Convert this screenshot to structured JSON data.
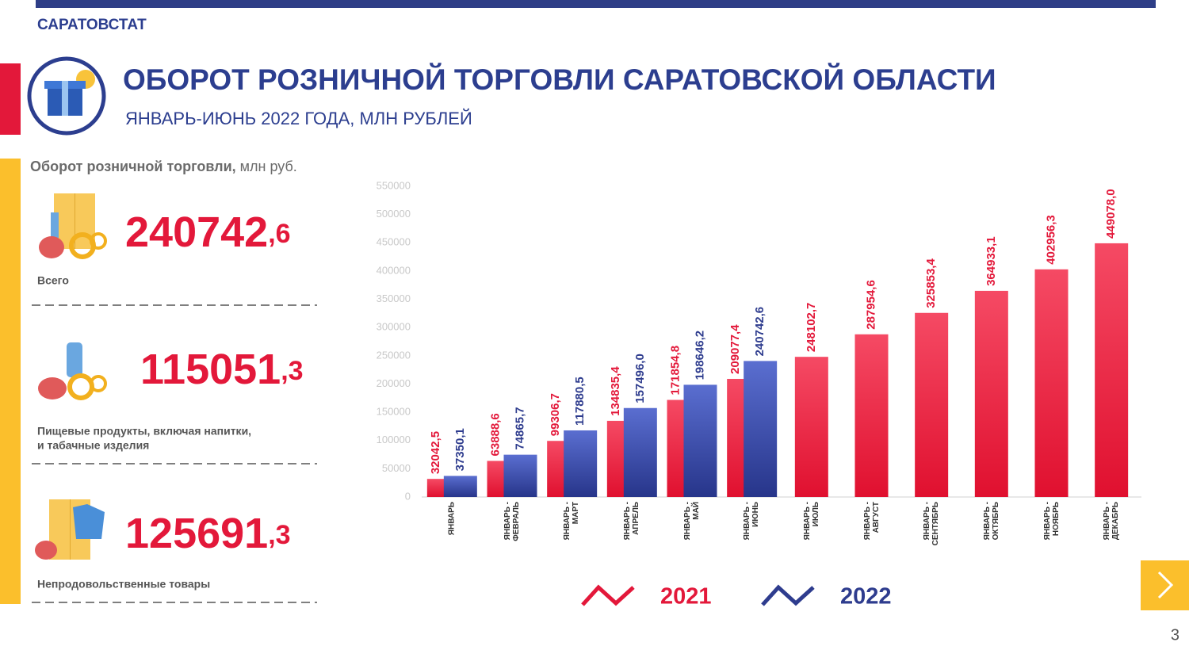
{
  "header": {
    "org": "САРАТОВСТАТ",
    "title": "ОБОРОТ РОЗНИЧНОЙ ТОРГОВЛИ САРАТОВСКОЙ ОБЛАСТИ",
    "subtitle": "ЯНВАРЬ-ИЮНЬ 2022 ГОДА, МЛН РУБЛЕЙ"
  },
  "panel": {
    "heading_bold": "Оборот розничной торговли,",
    "heading_unit": " млн руб.",
    "stats": [
      {
        "whole": "240742",
        "fraction": ",6",
        "label_lines": [
          "Всего"
        ]
      },
      {
        "whole": "115051",
        "fraction": ",3",
        "label_lines": [
          "Пищевые продукты, включая напитки,",
          "и табачные изделия"
        ]
      },
      {
        "whole": "125691",
        "fraction": ",3",
        "label_lines": [
          "Непродовольственные товары"
        ]
      }
    ]
  },
  "page_number": "3",
  "chart_data": {
    "type": "bar",
    "categories": [
      "ЯНВАРЬ",
      "ЯНВАРЬ - ФЕВРАЛЬ",
      "ЯНВАРЬ - МАРТ",
      "ЯНВАРЬ - АПРЕЛЬ",
      "ЯНВАРЬ - МАЙ",
      "ЯНВАРЬ - ИЮНЬ",
      "ЯНВАРЬ - ИЮЛЬ",
      "ЯНВАРЬ - АВГУСТ",
      "ЯНВАРЬ - СЕНТЯБРЬ",
      "ЯНВАРЬ - ОКТЯБРЬ",
      "ЯНВАРЬ - НОЯБРЬ",
      "ЯНВАРЬ - ДЕКАБРЬ"
    ],
    "series": [
      {
        "name": "2021",
        "color": "#e3183a",
        "values": [
          32042.5,
          63888.6,
          99306.7,
          134835.4,
          171854.8,
          209077.4,
          248102.7,
          287954.6,
          325853.4,
          364933.1,
          402956.3,
          449078.0
        ],
        "value_labels": [
          "32042,5",
          "63888,6",
          "99306,7",
          "134835,4",
          "171854,8",
          "209077,4",
          "248102,7",
          "287954,6",
          "325853,4",
          "364933,1",
          "402956,3",
          "449078,0"
        ]
      },
      {
        "name": "2022",
        "color": "#2e3c8e",
        "values": [
          37350.1,
          74865.7,
          117880.5,
          157496.0,
          198646.2,
          240742.6,
          null,
          null,
          null,
          null,
          null,
          null
        ],
        "value_labels": [
          "37350,1",
          "74865,7",
          "117880,5",
          "157496,0",
          "198646,2",
          "240742,6",
          null,
          null,
          null,
          null,
          null,
          null
        ]
      }
    ],
    "ylim": [
      0,
      550000
    ],
    "yticks": [
      0,
      50000,
      100000,
      150000,
      200000,
      250000,
      300000,
      350000,
      400000,
      450000,
      500000,
      550000
    ],
    "grid": false
  }
}
